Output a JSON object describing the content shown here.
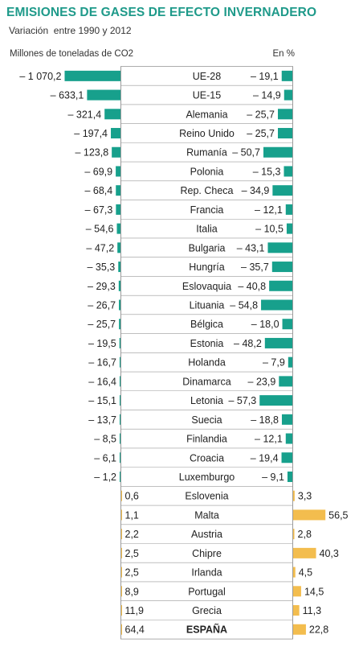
{
  "header": {
    "title": "EMISIONES DE GASES DE EFECTO INVERNADERO",
    "subtitle": "Variación  entre 1990 y 2012",
    "left_label": "Millones de toneladas de CO2",
    "right_label": "En %"
  },
  "colors": {
    "title": "#1f9a8a",
    "decrease_bar": "#17a08c",
    "increase_bar": "#f3bd4e",
    "grid": "#999999",
    "text": "#222222"
  },
  "chart_data": {
    "type": "bar",
    "categories": [
      "UE-28",
      "UE-15",
      "Alemania",
      "Reino Unido",
      "Rumanía",
      "Polonia",
      "Rep. Checa",
      "Francia",
      "Italia",
      "Bulgaria",
      "Hungría",
      "Eslovaquia",
      "Lituania",
      "Bélgica",
      "Estonia",
      "Holanda",
      "Dinamarca",
      "Letonia",
      "Suecia",
      "Finlandia",
      "Croacia",
      "Luxemburgo",
      "Eslovenia",
      "Malta",
      "Austria",
      "Chipre",
      "Irlanda",
      "Portugal",
      "Grecia",
      "ESPAÑA"
    ],
    "series": [
      {
        "name": "Millones de toneladas de CO2",
        "values": [
          -1070.2,
          -633.1,
          -321.4,
          -197.4,
          -123.8,
          -69.9,
          -68.4,
          -67.3,
          -54.6,
          -47.2,
          -35.3,
          -29.3,
          -26.7,
          -25.7,
          -19.5,
          -16.7,
          -16.4,
          -15.1,
          -13.7,
          -8.5,
          -6.1,
          -1.2,
          0.6,
          1.1,
          2.2,
          2.5,
          2.5,
          8.9,
          11.9,
          64.4
        ],
        "labels": [
          "– 1 070,2",
          "– 633,1",
          "– 321,4",
          "– 197,4",
          "– 123,8",
          "– 69,9",
          "– 68,4",
          "– 67,3",
          "– 54,6",
          "– 47,2",
          "– 35,3",
          "– 29,3",
          "– 26,7",
          "– 25,7",
          "– 19,5",
          "– 16,7",
          "– 16,4",
          "– 15,1",
          "– 13,7",
          "– 8,5",
          "– 6,1",
          "– 1,2",
          "0,6",
          "1,1",
          "2,2",
          "2,5",
          "2,5",
          "8,9",
          "11,9",
          "64,4"
        ]
      },
      {
        "name": "En %",
        "values": [
          -19.1,
          -14.9,
          -25.7,
          -25.7,
          -50.7,
          -15.3,
          -34.9,
          -12.1,
          -10.5,
          -43.1,
          -35.7,
          -40.8,
          -54.8,
          -18.0,
          -48.2,
          -7.9,
          -23.9,
          -57.3,
          -18.8,
          -12.1,
          -19.4,
          -9.1,
          3.3,
          56.5,
          2.8,
          40.3,
          4.5,
          14.5,
          11.3,
          22.8
        ],
        "labels": [
          "– 19,1",
          "– 14,9",
          "– 25,7",
          "– 25,7",
          "– 50,7",
          "– 15,3",
          "– 34,9",
          "– 12,1",
          "– 10,5",
          "– 43,1",
          "– 35,7",
          "– 40,8",
          "– 54,8",
          "– 18,0",
          "– 48,2",
          "– 7,9",
          "– 23,9",
          "– 57,3",
          "– 18,8",
          "– 12,1",
          "– 19,4",
          "– 9,1",
          "3,3",
          "56,5",
          "2,8",
          "40,3",
          "4,5",
          "14,5",
          "11,3",
          "22,8"
        ]
      }
    ],
    "legend": "none",
    "grid": false
  }
}
